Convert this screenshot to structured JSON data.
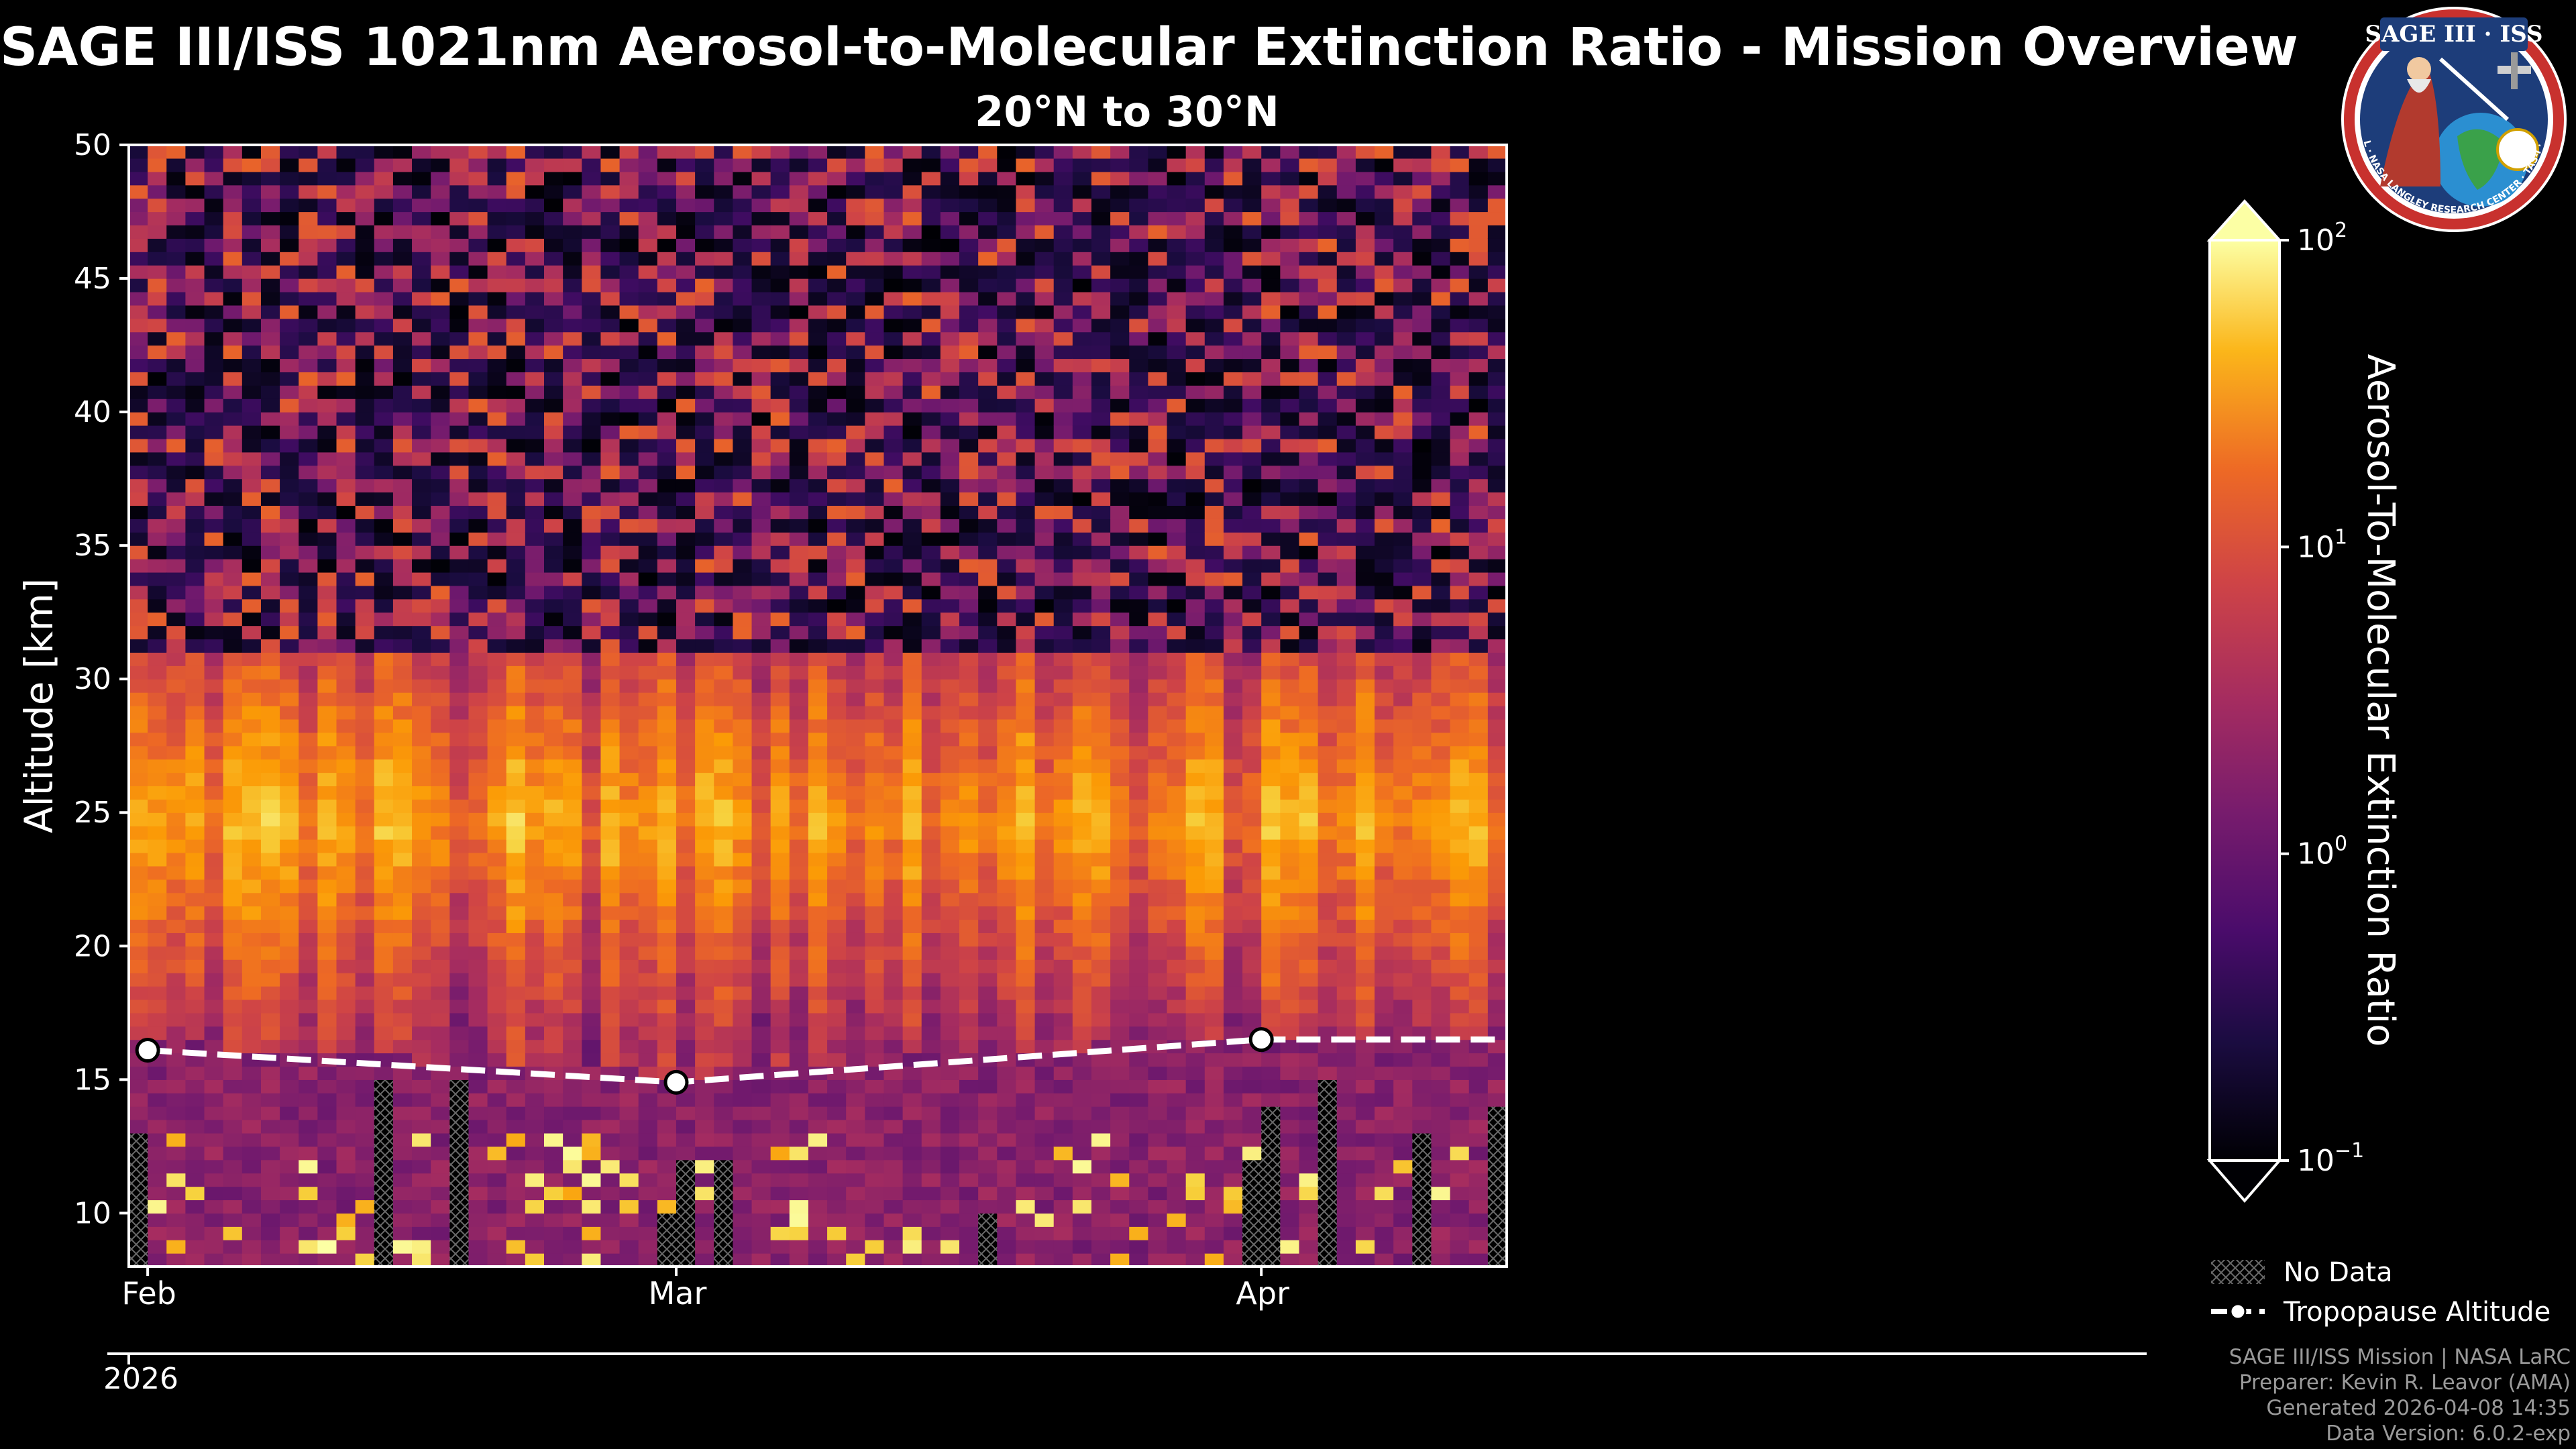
{
  "title": "SAGE III/ISS 1021nm Aerosol-to-Molecular Extinction Ratio - Mission Overview",
  "subtitle": "20°N to 30°N",
  "logo": {
    "line1": "SAGE III · ISS",
    "ring_text": "BALL · NASA LANGLEY RESEARCH CENTER · TAS-I · ESA"
  },
  "footer": {
    "mission": "SAGE III/ISS Mission | NASA LaRC",
    "preparer": "Preparer: Kevin R. Leavor (AMA)",
    "generated": "Generated 2026-04-08 14:35",
    "version": "Data Version: 6.0.2-exp"
  },
  "chart_data": {
    "type": "heatmap",
    "ylabel": "Altitude [km]",
    "ylim": [
      8,
      50
    ],
    "yticks": [
      10,
      15,
      20,
      25,
      30,
      35,
      40,
      45,
      50
    ],
    "xlim": [
      "2026-01-31",
      "2026-04-14"
    ],
    "xticks": [
      {
        "date": "2026-02-01",
        "label": "Feb"
      },
      {
        "date": "2026-03-01",
        "label": "Mar"
      },
      {
        "date": "2026-04-01",
        "label": "Apr"
      }
    ],
    "year_label": "2026",
    "colorbar": {
      "label": "Aerosol-To-Molecular Extinction Ratio",
      "scale": "log",
      "range": [
        0.1,
        100
      ],
      "colormap": "inferno",
      "extend": "both",
      "ticks": [
        {
          "value": 100,
          "base": "10",
          "exp": "2"
        },
        {
          "value": 10,
          "base": "10",
          "exp": "1"
        },
        {
          "value": 1,
          "base": "10",
          "exp": "0"
        },
        {
          "value": 0.1,
          "base": "10",
          "exp": "−1"
        }
      ]
    },
    "tropopause": {
      "name": "Tropopause Altitude",
      "points": [
        {
          "date": "2026-02-01",
          "altitude": 16.1
        },
        {
          "date": "2026-03-01",
          "altitude": 14.9
        },
        {
          "date": "2026-04-01",
          "altitude": 16.5
        }
      ]
    },
    "legend": {
      "position": "lower-right",
      "entries": [
        "No Data",
        "Tropopause Altitude"
      ]
    },
    "grid": false
  }
}
